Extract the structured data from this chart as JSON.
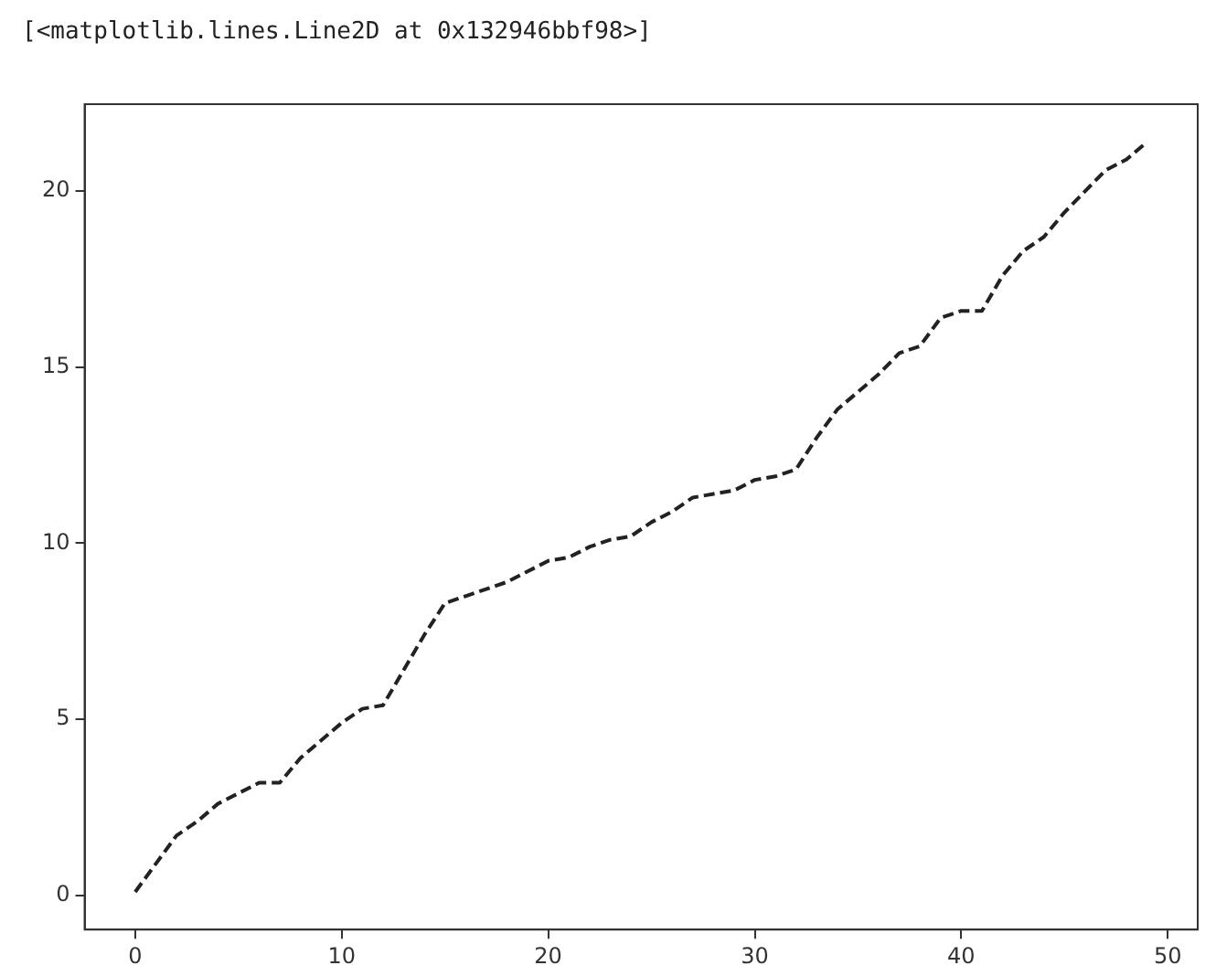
{
  "chart_data": {
    "type": "line",
    "annotations": [
      "[<matplotlib.lines.Line2D at 0x132946bbf98>]"
    ],
    "x": [
      0,
      1,
      2,
      3,
      4,
      5,
      6,
      7,
      8,
      9,
      10,
      11,
      12,
      13,
      14,
      15,
      16,
      17,
      18,
      19,
      20,
      21,
      22,
      23,
      24,
      25,
      26,
      27,
      28,
      29,
      30,
      31,
      32,
      33,
      34,
      35,
      36,
      37,
      38,
      39,
      40,
      41,
      42,
      43,
      44,
      45,
      46,
      47,
      48,
      49
    ],
    "series": [
      {
        "color": "#222222",
        "values": [
          0.1,
          0.9,
          1.7,
          2.1,
          2.6,
          2.9,
          3.2,
          3.2,
          3.9,
          4.4,
          4.9,
          5.3,
          5.4,
          6.4,
          7.4,
          8.3,
          8.5,
          8.7,
          8.9,
          9.2,
          9.5,
          9.6,
          9.9,
          10.1,
          10.2,
          10.6,
          10.9,
          11.3,
          11.4,
          11.5,
          11.8,
          11.9,
          12.1,
          13.0,
          13.8,
          14.3,
          14.8,
          15.4,
          15.6,
          16.4,
          16.6,
          16.6,
          17.6,
          18.3,
          18.7,
          19.4,
          20.0,
          20.6,
          20.9,
          21.4
        ]
      }
    ],
    "xlim": [
      -2.45,
      51.45
    ],
    "xticks": [
      0,
      10,
      20,
      30,
      40,
      50
    ],
    "ylim": [
      -0.97,
      22.47
    ],
    "yticks": [
      0,
      5,
      10,
      15,
      20
    ],
    "grid": false,
    "legend": false,
    "marker": "none",
    "line_style": "dashed"
  }
}
